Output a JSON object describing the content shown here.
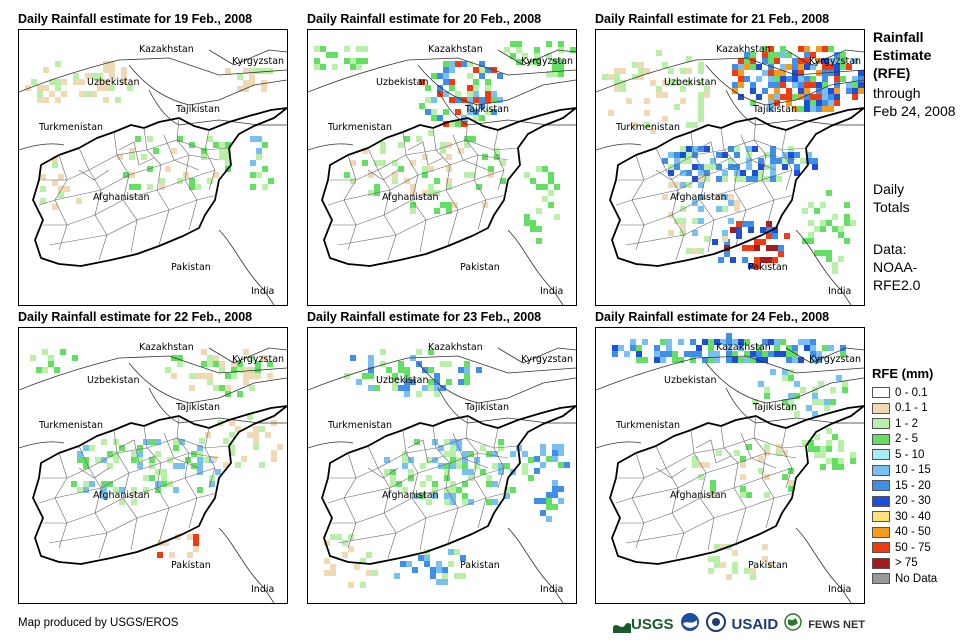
{
  "panels": [
    {
      "title": "Daily Rainfall estimate for 19 Feb., 2008"
    },
    {
      "title": "Daily Rainfall estimate for 20 Feb., 2008"
    },
    {
      "title": "Daily Rainfall estimate for 21 Feb., 2008"
    },
    {
      "title": "Daily Rainfall estimate for 22 Feb., 2008"
    },
    {
      "title": "Daily Rainfall estimate for 23 Feb., 2008"
    },
    {
      "title": "Daily Rainfall estimate for 24 Feb., 2008"
    }
  ],
  "places": {
    "kazakhstan": "Kazakhstan",
    "kyrgyzstan": "Kyrgyzstan",
    "uzbekistan": "Uzbekistan",
    "tajikistan": "Tajikistan",
    "turkmenistan": "Turkmenistan",
    "afghanistan": "Afghanistan",
    "pakistan": "Pakistan",
    "india": "India"
  },
  "sidebar": {
    "title_line1": "Rainfall",
    "title_line2": "Estimate",
    "title_line3": "(RFE)",
    "through_line1": "through",
    "through_line2": "Feb 24, 2008",
    "daily_line1": "Daily",
    "daily_line2": "Totals",
    "data_line1": "Data:",
    "data_line2": "NOAA-",
    "data_line3": "RFE2.0"
  },
  "legend": {
    "title": "RFE (mm)",
    "items": [
      {
        "label": "0 - 0.1",
        "color": "#ffffff"
      },
      {
        "label": "0.1 - 1",
        "color": "#f0d9b5"
      },
      {
        "label": "1 - 2",
        "color": "#b9f0a8"
      },
      {
        "label": "2 - 5",
        "color": "#63e063"
      },
      {
        "label": "5 - 10",
        "color": "#a8ecf5"
      },
      {
        "label": "10 - 15",
        "color": "#79c0f2"
      },
      {
        "label": "15 - 20",
        "color": "#3f8ee8"
      },
      {
        "label": "20 - 30",
        "color": "#1c4fd6"
      },
      {
        "label": "30 - 40",
        "color": "#fde27a"
      },
      {
        "label": "40 - 50",
        "color": "#f79a1e"
      },
      {
        "label": "50 - 75",
        "color": "#f03a12"
      },
      {
        "label": "> 75",
        "color": "#a61c1c"
      },
      {
        "label": "No Data",
        "color": "#999999"
      }
    ]
  },
  "credit": "Map produced by USGS/EROS",
  "logos": {
    "usgs": "USGS",
    "usaid": "USAID",
    "fewsnet": "FEWS NET"
  }
}
